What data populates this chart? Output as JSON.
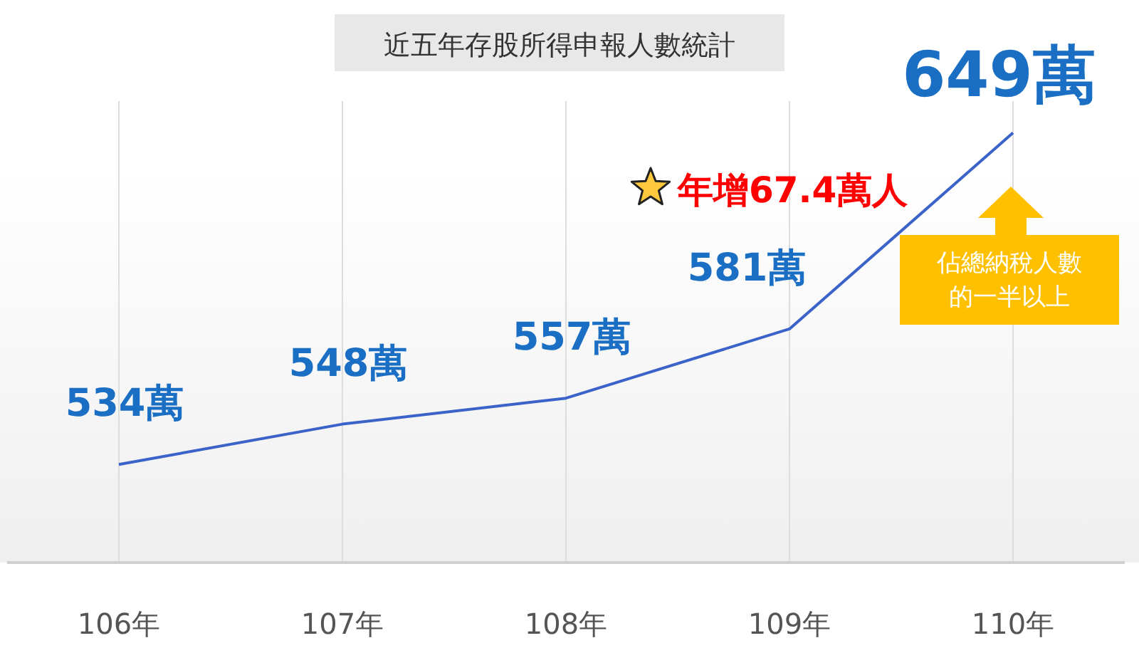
{
  "chart_data": {
    "type": "line",
    "title": "近五年存股所得申報人數統計",
    "categories": [
      "106年",
      "107年",
      "108年",
      "109年",
      "110年"
    ],
    "series": [
      {
        "color": "#3a62c9",
        "values": [
          534,
          548,
          557,
          581,
          649
        ],
        "value_labels": [
          "534萬",
          "548萬",
          "557萬",
          "581萬",
          "649萬"
        ]
      }
    ],
    "ylim": [
      500,
      660
    ],
    "grid": "x",
    "marker": "none",
    "line_style": "solid",
    "annotations": [
      "年增67.4萬人",
      "佔總納稅人數的一半以上"
    ]
  }
}
